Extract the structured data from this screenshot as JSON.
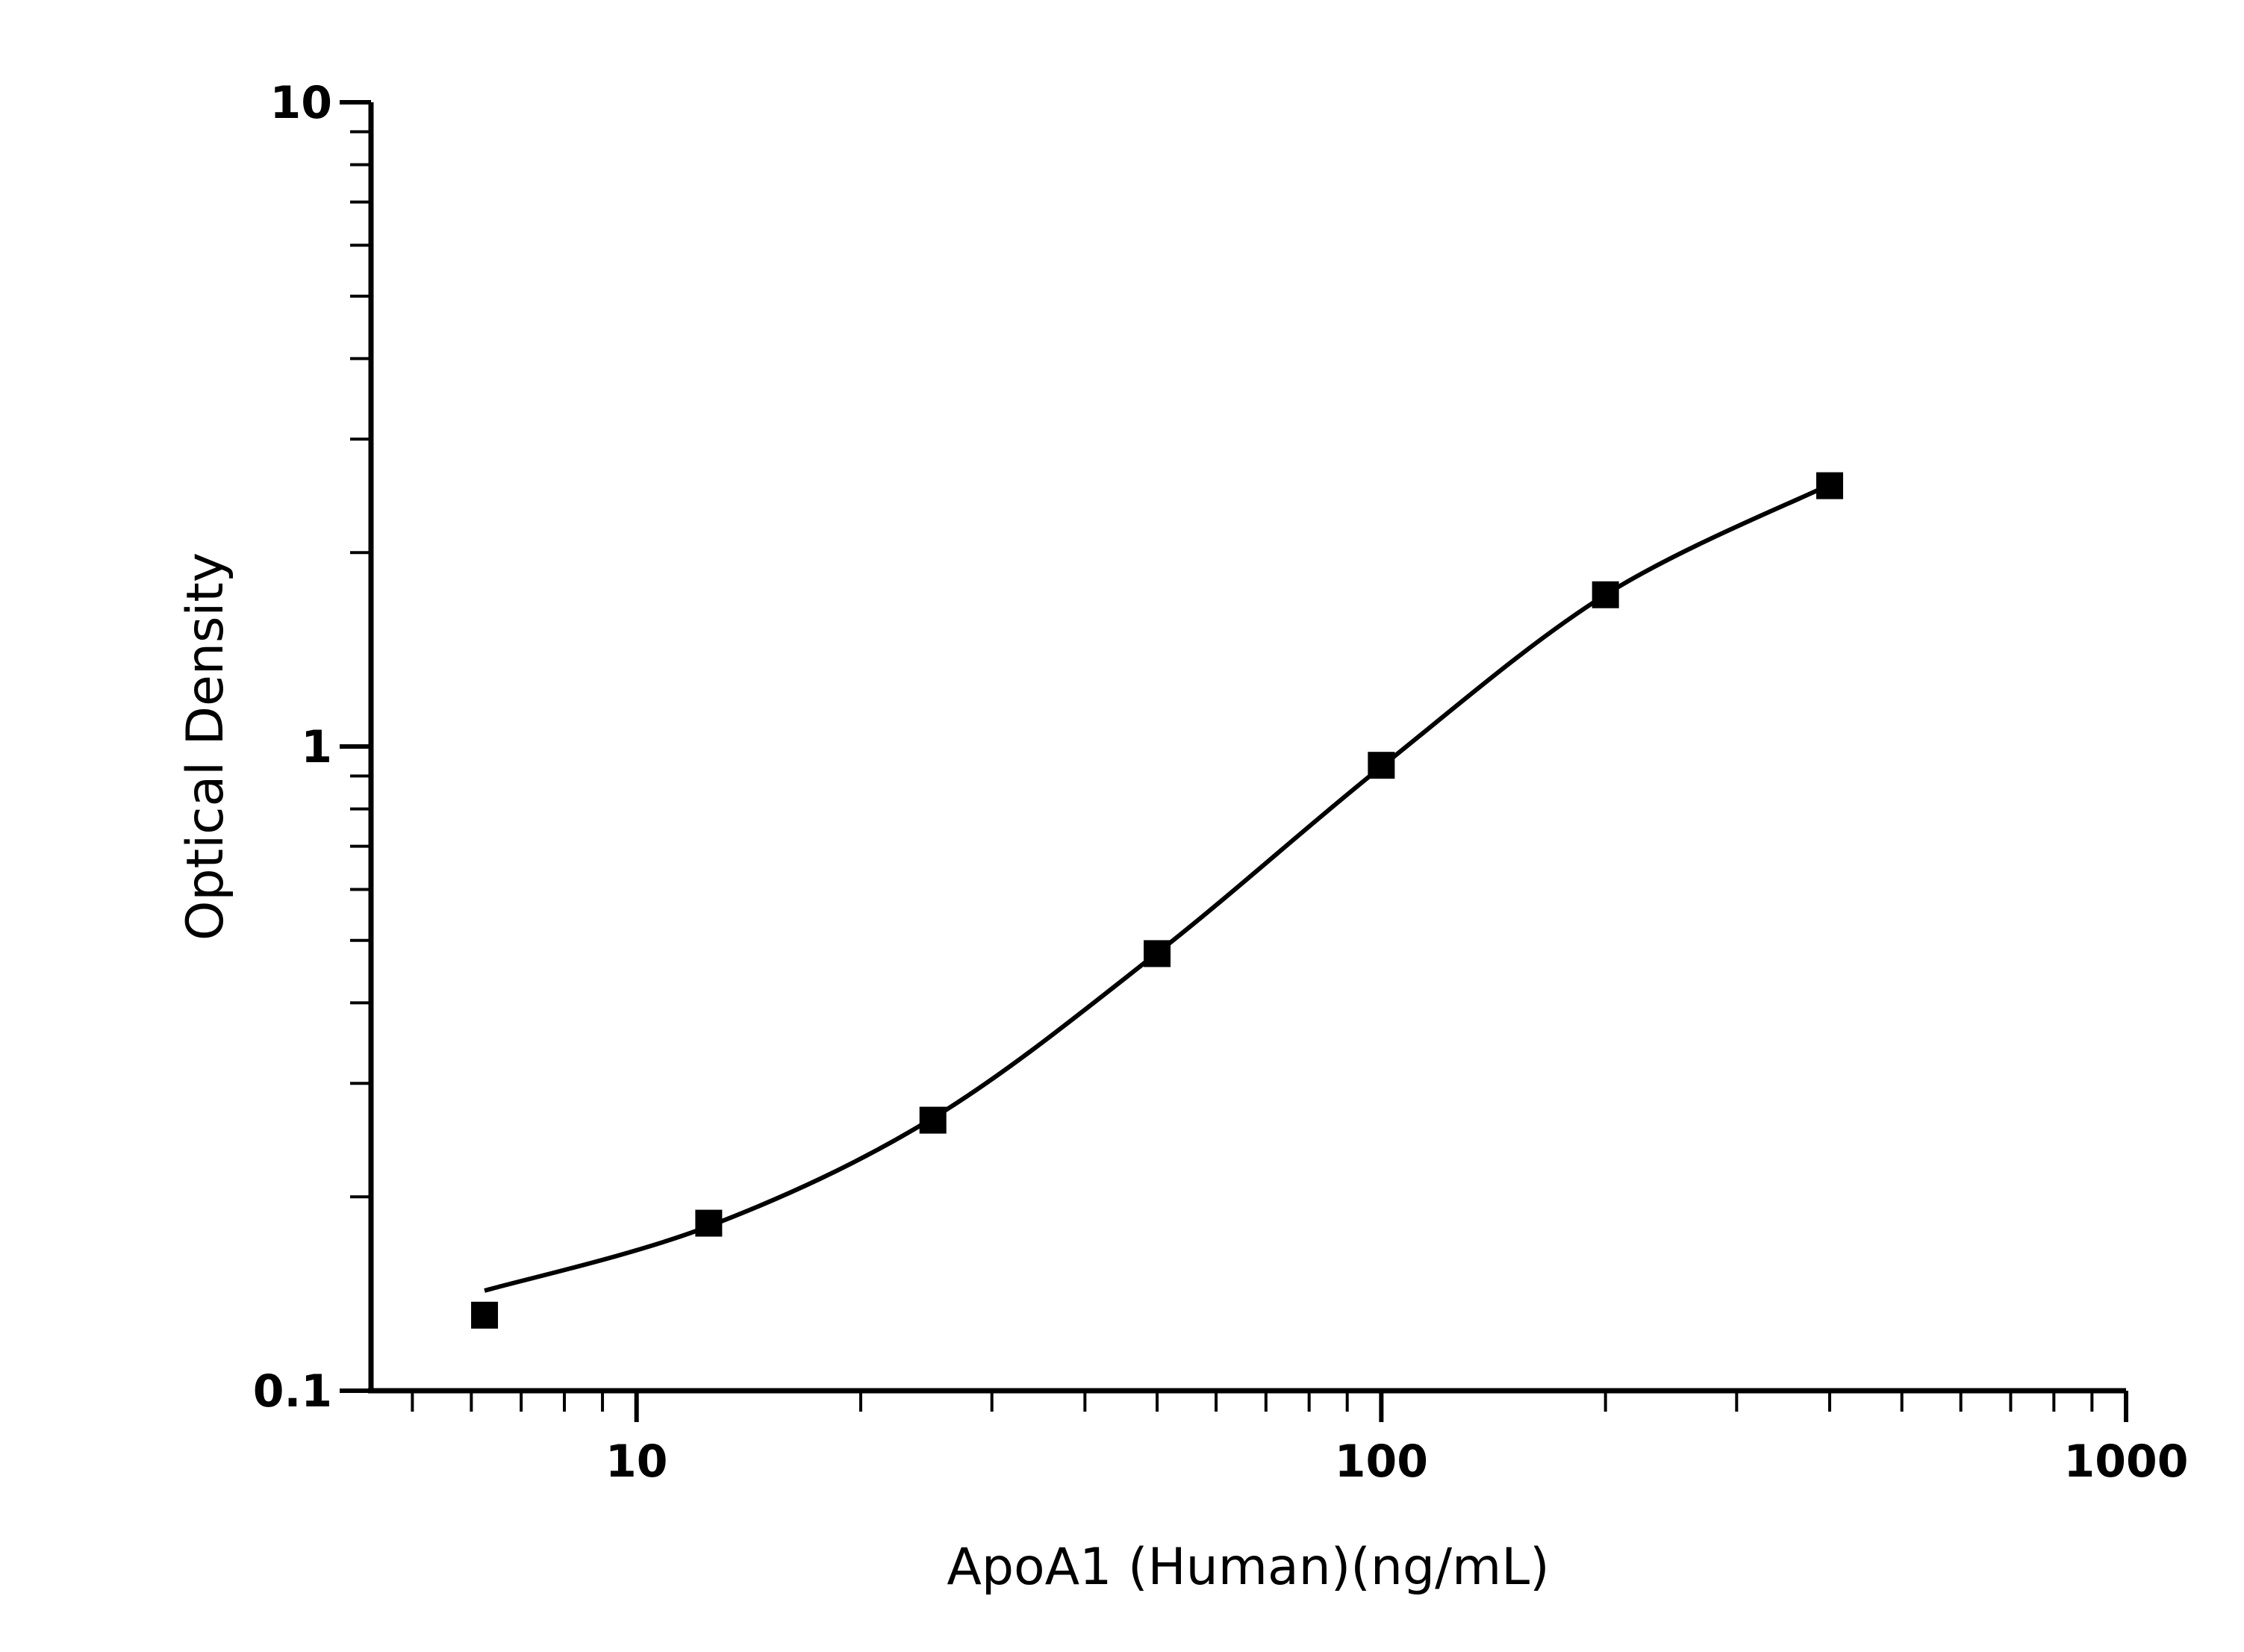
{
  "chart_data": {
    "type": "scatter",
    "title": "",
    "xlabel": "ApoA1 (Human)(ng/mL)",
    "ylabel": "Optical Density",
    "x_scale": "log",
    "y_scale": "log",
    "xlim": [
      4.4,
      1000
    ],
    "ylim": [
      0.1,
      10
    ],
    "x_ticks": [
      {
        "value": 10,
        "label": "10"
      },
      {
        "value": 100,
        "label": "100"
      },
      {
        "value": 1000,
        "label": "1000"
      }
    ],
    "y_ticks": [
      {
        "value": 0.1,
        "label": "0.1"
      },
      {
        "value": 1,
        "label": "1"
      },
      {
        "value": 10,
        "label": "10"
      }
    ],
    "grid": false,
    "legend": "none",
    "marker": "square",
    "color": "#000000",
    "series": [
      {
        "x": [
          6.25,
          12.5,
          25,
          50,
          100,
          200,
          400
        ],
        "y": [
          0.131,
          0.182,
          0.263,
          0.477,
          0.935,
          1.72,
          2.54
        ]
      }
    ],
    "fit_curve": {
      "x": [
        6.25,
        12.5,
        25,
        50,
        100,
        200,
        400
      ],
      "y": [
        0.143,
        0.18,
        0.265,
        0.478,
        0.93,
        1.72,
        2.55
      ]
    }
  }
}
